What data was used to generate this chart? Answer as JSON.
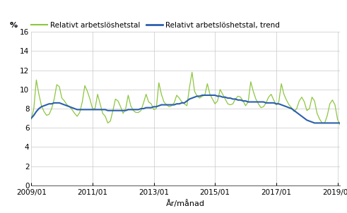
{
  "ylabel": "%",
  "xlabel": "År/månad",
  "legend_labels": [
    "Relativt arbetslöshetstal",
    "Relativt arbetslöshetstal, trend"
  ],
  "line_color_actual": "#8dc63f",
  "line_color_trend": "#2b5fad",
  "ylim": [
    0,
    16
  ],
  "yticks": [
    0,
    2,
    4,
    6,
    8,
    10,
    12,
    14,
    16
  ],
  "xtick_labels": [
    "2009/01",
    "2011/01",
    "2013/01",
    "2015/01",
    "2017/01",
    "2019/01"
  ],
  "background_color": "#ffffff",
  "grid_color": "#c8c8c8",
  "actual": [
    6.9,
    8.0,
    11.0,
    9.5,
    8.3,
    7.7,
    7.3,
    7.4,
    8.0,
    9.0,
    10.5,
    10.3,
    9.1,
    8.8,
    8.4,
    8.2,
    7.9,
    7.5,
    7.2,
    7.6,
    8.7,
    10.4,
    9.8,
    9.0,
    8.0,
    8.0,
    9.5,
    8.5,
    7.5,
    7.2,
    6.5,
    6.7,
    7.8,
    9.0,
    8.8,
    8.2,
    7.5,
    8.0,
    9.4,
    8.3,
    7.8,
    7.6,
    7.6,
    7.8,
    8.6,
    9.5,
    8.7,
    8.5,
    7.9,
    8.0,
    10.7,
    9.5,
    8.7,
    8.4,
    8.2,
    8.3,
    8.6,
    9.4,
    9.1,
    8.7,
    8.5,
    8.3,
    10.2,
    11.8,
    9.8,
    9.3,
    9.1,
    9.3,
    9.4,
    10.6,
    9.5,
    9.0,
    8.5,
    8.8,
    10.0,
    9.5,
    9.0,
    8.5,
    8.4,
    8.5,
    9.0,
    9.3,
    9.2,
    8.8,
    8.3,
    8.7,
    10.8,
    9.8,
    9.0,
    8.5,
    8.1,
    8.2,
    8.6,
    9.2,
    9.5,
    8.9,
    8.4,
    8.7,
    10.6,
    9.5,
    8.9,
    8.4,
    8.1,
    7.7,
    8.0,
    8.8,
    9.2,
    8.7,
    7.8,
    8.0,
    9.2,
    8.8,
    7.5,
    6.9,
    6.5,
    6.5,
    7.3,
    8.5,
    8.9,
    8.4,
    6.9,
    6.3,
    5.6
  ],
  "trend": [
    7.0,
    7.3,
    7.7,
    8.0,
    8.2,
    8.3,
    8.4,
    8.5,
    8.5,
    8.6,
    8.6,
    8.6,
    8.5,
    8.4,
    8.3,
    8.2,
    8.1,
    8.0,
    7.9,
    7.9,
    7.9,
    7.9,
    7.9,
    7.9,
    7.9,
    7.9,
    7.9,
    7.9,
    7.9,
    7.9,
    7.8,
    7.8,
    7.8,
    7.8,
    7.8,
    7.8,
    7.8,
    7.8,
    7.9,
    7.9,
    7.9,
    7.9,
    7.9,
    8.0,
    8.0,
    8.1,
    8.1,
    8.1,
    8.2,
    8.2,
    8.3,
    8.4,
    8.4,
    8.4,
    8.4,
    8.4,
    8.4,
    8.5,
    8.5,
    8.6,
    8.6,
    8.8,
    9.0,
    9.1,
    9.2,
    9.3,
    9.3,
    9.4,
    9.4,
    9.4,
    9.4,
    9.4,
    9.4,
    9.3,
    9.3,
    9.2,
    9.2,
    9.1,
    9.1,
    9.0,
    9.0,
    8.9,
    8.9,
    8.8,
    8.8,
    8.7,
    8.7,
    8.7,
    8.7,
    8.7,
    8.7,
    8.7,
    8.6,
    8.6,
    8.6,
    8.6,
    8.5,
    8.5,
    8.4,
    8.3,
    8.2,
    8.1,
    8.0,
    7.8,
    7.6,
    7.4,
    7.2,
    7.0,
    6.8,
    6.7,
    6.6,
    6.5,
    6.5,
    6.5,
    6.5,
    6.5,
    6.5,
    6.5,
    6.5,
    6.5,
    6.5,
    6.5,
    6.5
  ]
}
